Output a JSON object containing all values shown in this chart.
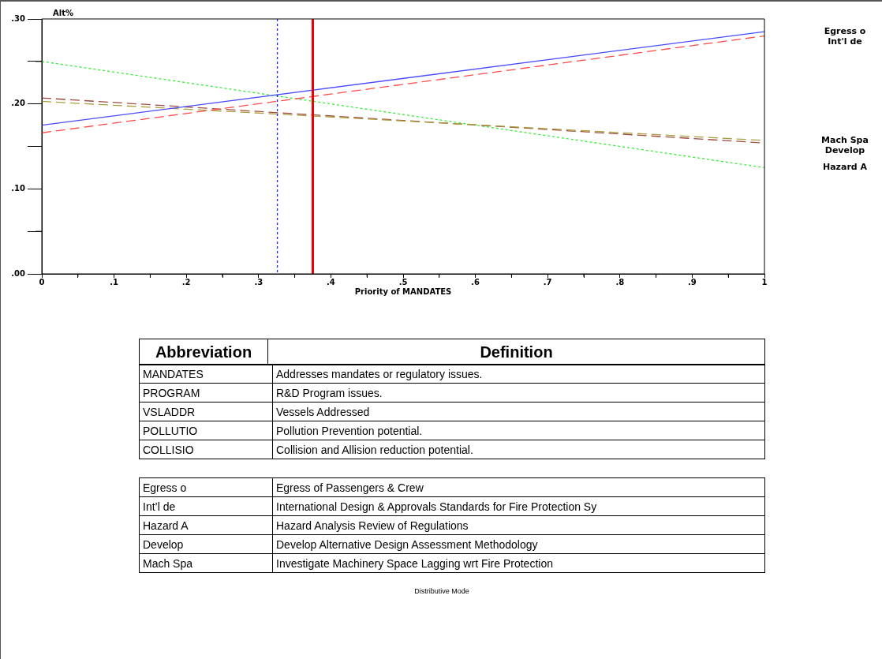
{
  "chart_data": {
    "type": "line",
    "xlabel": "Priority of MANDATES",
    "ylabel": "Alt%",
    "x": [
      0,
      1
    ],
    "xlim": [
      0,
      1
    ],
    "xticks": [
      0,
      {
        "value": 0.05,
        "label": null
      },
      {
        "value": 0.1,
        "label": ".1"
      },
      {
        "value": 0.15,
        "label": null
      },
      {
        "value": 0.2,
        "label": ".2"
      },
      {
        "value": 0.25,
        "label": null
      },
      {
        "value": 0.3,
        "label": ".3"
      },
      {
        "value": 0.35,
        "label": null
      },
      {
        "value": 0.4,
        "label": ".4"
      },
      {
        "value": 0.45,
        "label": null
      },
      {
        "value": 0.5,
        "label": ".5"
      },
      {
        "value": 0.55,
        "label": null
      },
      {
        "value": 0.6,
        "label": ".6"
      },
      {
        "value": 0.65,
        "label": null
      },
      {
        "value": 0.7,
        "label": ".7"
      },
      {
        "value": 0.75,
        "label": null
      },
      {
        "value": 0.8,
        "label": ".8"
      },
      {
        "value": 0.85,
        "label": null
      },
      {
        "value": 0.9,
        "label": ".9"
      },
      {
        "value": 0.95,
        "label": null
      },
      1
    ],
    "ylim": [
      0,
      0.3
    ],
    "yticks": [
      {
        "value": 0,
        "label": ".00"
      },
      {
        "value": 0.05,
        "label": null
      },
      {
        "value": 0.1,
        "label": ".10"
      },
      {
        "value": 0.15,
        "label": null
      },
      {
        "value": 0.2,
        "label": ".20"
      },
      {
        "value": 0.25,
        "label": null
      },
      {
        "value": 0.3,
        "label": ".30"
      }
    ],
    "grid": false,
    "legend": false,
    "marker": "none",
    "series": [
      {
        "name": "Egress o",
        "color": "#4a4aff",
        "line_style": "solid",
        "values": [
          0.175,
          0.285
        ]
      },
      {
        "name": "Int'l de",
        "color": "#ff4a4a",
        "line_style": "dashed",
        "values": [
          0.166,
          0.28
        ]
      },
      {
        "name": "Mach Spa",
        "color": "#a8a040",
        "line_style": "dashed",
        "values": [
          0.203,
          0.157
        ]
      },
      {
        "name": "Develop",
        "color": "#a04a40",
        "line_style": "dashed",
        "values": [
          0.207,
          0.154
        ]
      },
      {
        "name": "Hazard A",
        "color": "#33ee33",
        "line_style": "dotted",
        "values": [
          0.25,
          0.125
        ]
      }
    ],
    "ref_lines": [
      {
        "axis": "x",
        "value": 0.326,
        "color": "#2222ff",
        "line_style": "dotted"
      },
      {
        "axis": "x",
        "value": 0.375,
        "color": "#ee0000",
        "line_style": "solid"
      }
    ],
    "annotations": [
      "Abbreviation",
      "Definition",
      "MANDATES",
      "Addresses mandates or regulatory issues.",
      "PROGRAM",
      "R&D Program issues.",
      "VSLADDR",
      "Vessels Addressed",
      "POLLUTIO",
      "Pollution Prevention potential.",
      "COLLISIO",
      "Collision and Allision reduction potential.",
      "Egress o",
      "Egress of Passengers & Crew",
      "Int’l de",
      "International Design & Approvals Standards for Fire Protection Sy",
      "Hazard A",
      "Hazard Analysis Review of Regulations",
      "Develop",
      "Develop Alternative Design Assessment Methodology",
      "Mach Spa",
      "Investigate Machinery Space Lagging wrt Fire Protection",
      "Distributive Mode"
    ]
  }
}
